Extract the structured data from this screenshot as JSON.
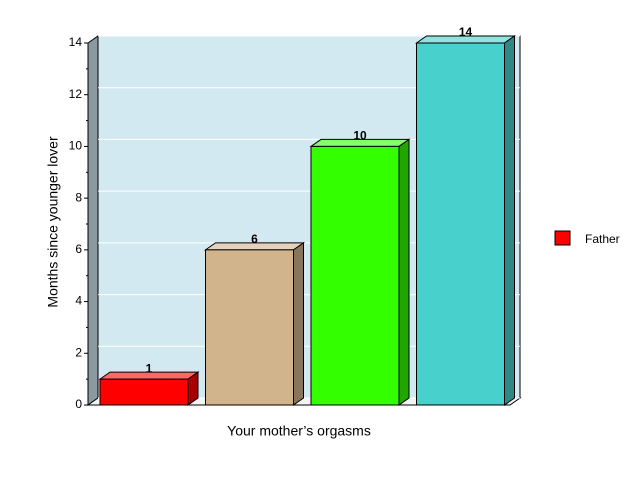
{
  "chart_data": {
    "type": "bar3d",
    "x_label": "Your mother’s orgasms",
    "y_label": "Months since younger lover",
    "categories": [
      null,
      null,
      null,
      null
    ],
    "series": [
      {
        "name": "Father",
        "color": "#ff0000",
        "values": [
          1,
          6,
          10,
          14
        ]
      }
    ],
    "bar_colors": [
      "#ff0000",
      "#d2b48c",
      "#33ff00",
      "#48d1cc"
    ],
    "ylim": [
      0,
      14
    ],
    "yticks": [
      0,
      2,
      4,
      6,
      8,
      10,
      12,
      14
    ],
    "grid": true,
    "legend": "right"
  }
}
